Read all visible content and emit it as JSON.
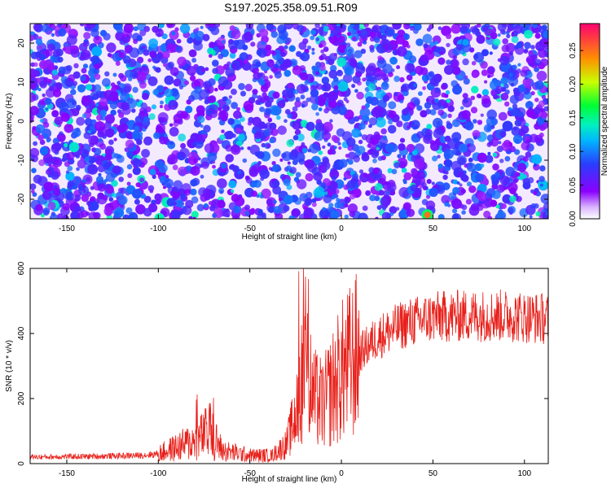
{
  "title": "S197.2025.358.09.51.R09",
  "chart_data": [
    {
      "type": "heatmap",
      "xlabel": "Height of straight line (km)",
      "ylabel": "Frequency (Hz)",
      "xlim": [
        -170,
        113
      ],
      "ylim": [
        -25,
        25
      ],
      "xticks": [
        -150,
        -100,
        -50,
        0,
        50,
        100
      ],
      "yticks": [
        -20,
        -10,
        0,
        10,
        20
      ],
      "colorbar": {
        "label": "Normalized spectral amplitude",
        "range": [
          0,
          0.29
        ],
        "ticks": [
          0.0,
          0.05,
          0.1,
          0.15,
          0.2,
          0.25
        ],
        "tick_labels": [
          "0.00",
          "0.05",
          "0.10",
          "0.15",
          "0.20",
          "0.25"
        ],
        "colors": [
          "#ffffff",
          "#8c00ff",
          "#2a3dff",
          "#00d5ff",
          "#00ff66",
          "#c8ff00",
          "#ff9000",
          "#ff0070"
        ]
      },
      "values_description_points": [
        {
          "x": 47,
          "y": -24,
          "value": 0.25
        }
      ]
    },
    {
      "type": "line",
      "xlabel": "Height of straight line (km)",
      "ylabel": "SNR (10 * v/v)",
      "xlim": [
        -170,
        113
      ],
      "ylim": [
        0,
        600
      ],
      "xticks": [
        -150,
        -100,
        -50,
        0,
        50,
        100
      ],
      "yticks": [
        0,
        200,
        400,
        600
      ],
      "color": "#e8201a",
      "series_envelope": [
        {
          "x": -170,
          "y": 20
        },
        {
          "x": -140,
          "y": 22
        },
        {
          "x": -110,
          "y": 25
        },
        {
          "x": -100,
          "y": 30
        },
        {
          "x": -90,
          "y": 50
        },
        {
          "x": -80,
          "y": 70
        },
        {
          "x": -72,
          "y": 100
        },
        {
          "x": -65,
          "y": 40
        },
        {
          "x": -50,
          "y": 25
        },
        {
          "x": -38,
          "y": 25
        },
        {
          "x": -30,
          "y": 60
        },
        {
          "x": -25,
          "y": 150
        },
        {
          "x": -20,
          "y": 330
        },
        {
          "x": -15,
          "y": 200
        },
        {
          "x": -10,
          "y": 180
        },
        {
          "x": 0,
          "y": 280
        },
        {
          "x": 10,
          "y": 340
        },
        {
          "x": 20,
          "y": 390
        },
        {
          "x": 35,
          "y": 430
        },
        {
          "x": 50,
          "y": 450
        },
        {
          "x": 70,
          "y": 455
        },
        {
          "x": 90,
          "y": 455
        },
        {
          "x": 113,
          "y": 445
        }
      ]
    }
  ]
}
